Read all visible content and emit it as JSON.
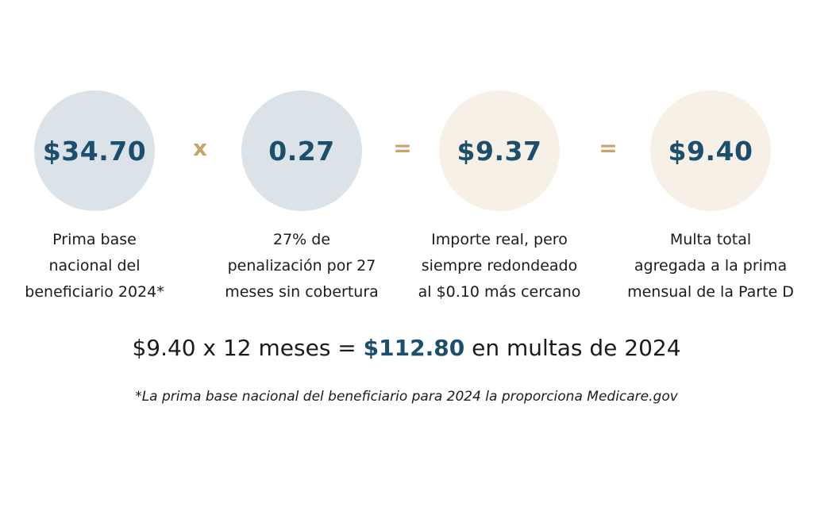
{
  "colors": {
    "circle_blue": "#dbe3e8",
    "circle_cream": "#f6f0e6",
    "number_text": "#1c4f6e",
    "operator": "#c9a46a"
  },
  "steps": [
    {
      "value": "$34.70",
      "desc_lines": [
        "Prima base",
        "nacional del",
        "beneficiario 2024*"
      ]
    },
    {
      "value": "0.27",
      "desc_lines": [
        "27% de",
        "penalización por 27",
        "meses sin cobertura"
      ]
    },
    {
      "value": "$9.37",
      "desc_lines": [
        "Importe real, pero",
        "siempre redondeado",
        "al $0.10 más cercano"
      ]
    },
    {
      "value": "$9.40",
      "desc_lines": [
        "Multa total",
        "agregada a la prima",
        "mensual de la Parte D"
      ]
    }
  ],
  "operators": [
    "x",
    "=",
    "="
  ],
  "summary": {
    "prefix": "$9.40 x 12 meses = ",
    "highlight": "$112.80",
    "suffix": " en multas de 2024"
  },
  "footnote": "*La prima base nacional del beneficiario para 2024 la proporciona Medicare.gov"
}
